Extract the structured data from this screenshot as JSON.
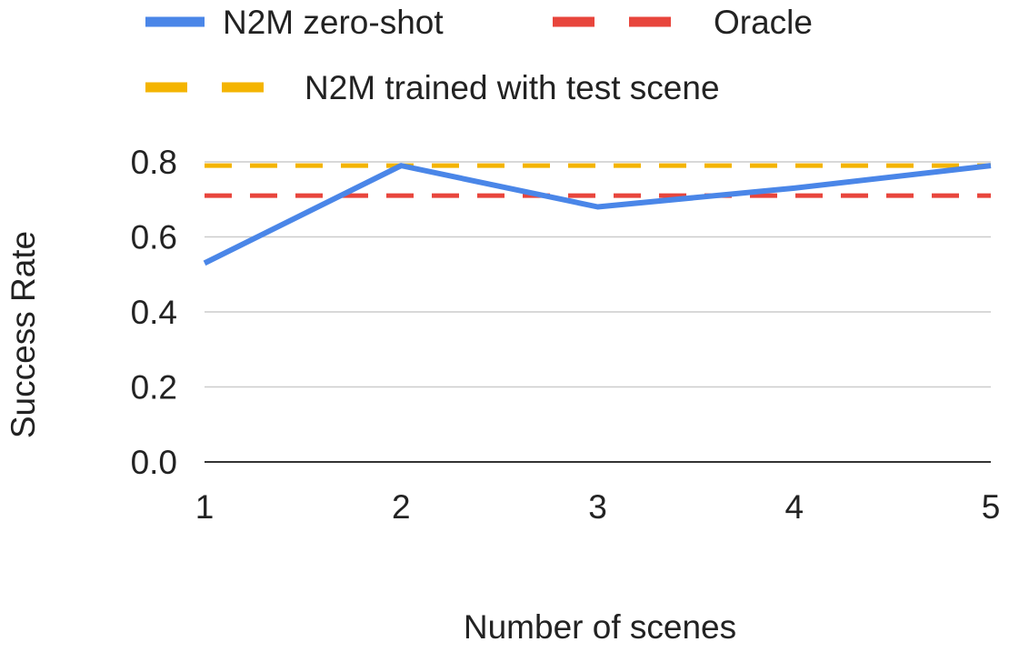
{
  "chart_data": {
    "type": "line",
    "xlabel": "Number of scenes",
    "ylabel": "Success Rate",
    "x": [
      1,
      2,
      3,
      4,
      5
    ],
    "ylim": [
      0,
      0.8
    ],
    "yticks": [
      "0.0",
      "0.2",
      "0.4",
      "0.6",
      "0.8"
    ],
    "xticks": [
      "1",
      "2",
      "3",
      "4",
      "5"
    ],
    "grid": true,
    "legend_position": "top",
    "series": [
      {
        "name": "N2M zero-shot",
        "values": [
          0.53,
          0.79,
          0.68,
          0.73,
          0.79
        ],
        "color": "#4a86e8",
        "style": "solid"
      },
      {
        "name": "Oracle",
        "values": [
          0.71,
          0.71,
          0.71,
          0.71,
          0.71
        ],
        "color": "#e8453c",
        "style": "dashed"
      },
      {
        "name": "N2M trained with test scene",
        "values": [
          0.79,
          0.79,
          0.79,
          0.79,
          0.79
        ],
        "color": "#f4b400",
        "style": "dashed"
      }
    ]
  }
}
